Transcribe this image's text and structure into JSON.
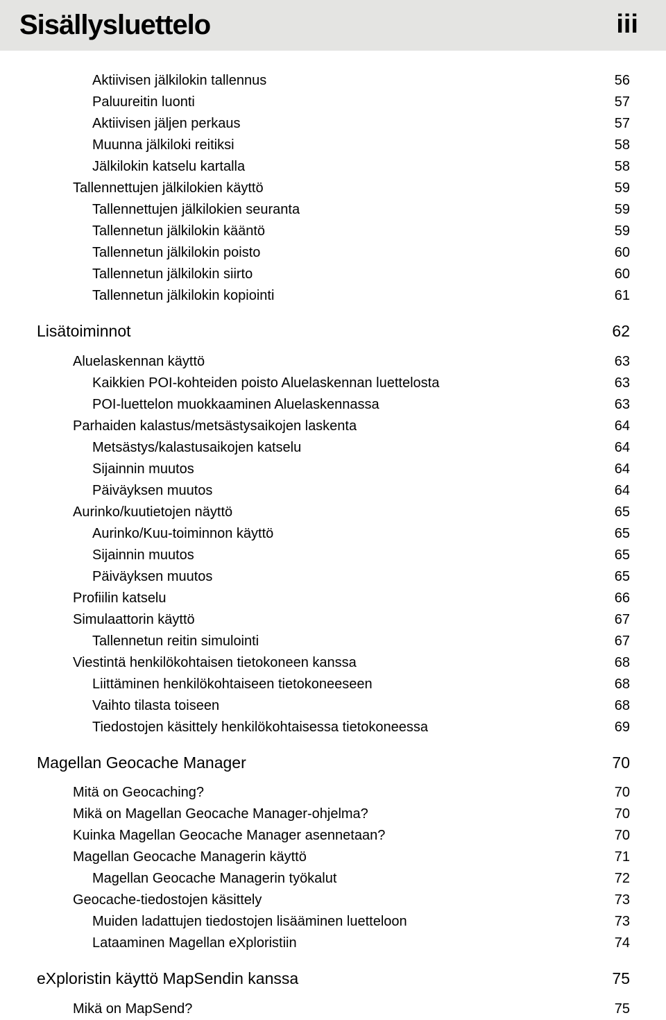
{
  "header": {
    "title": "Sisällysluettelo",
    "page_number": "iii"
  },
  "toc": [
    {
      "level": 2,
      "label": "Aktiivisen jälkilokin tallennus",
      "page": "56"
    },
    {
      "level": 2,
      "label": "Paluureitin luonti",
      "page": "57"
    },
    {
      "level": 2,
      "label": "Aktiivisen jäljen perkaus",
      "page": "57"
    },
    {
      "level": 2,
      "label": "Muunna jälkiloki reitiksi",
      "page": "58"
    },
    {
      "level": 2,
      "label": "Jälkilokin katselu kartalla",
      "page": "58"
    },
    {
      "level": 1,
      "label": "Tallennettujen jälkilokien käyttö",
      "page": "59"
    },
    {
      "level": 2,
      "label": "Tallennettujen jälkilokien seuranta",
      "page": "59"
    },
    {
      "level": 2,
      "label": "Tallennetun jälkilokin kääntö",
      "page": "59"
    },
    {
      "level": 2,
      "label": "Tallennetun jälkilokin poisto",
      "page": "60"
    },
    {
      "level": 2,
      "label": "Tallennetun jälkilokin siirto",
      "page": "60"
    },
    {
      "level": 2,
      "label": "Tallennetun jälkilokin kopiointi",
      "page": "61"
    },
    {
      "level": 0,
      "label": "Lisätoiminnot",
      "page": "62"
    },
    {
      "level": 1,
      "label": "Aluelaskennan käyttö",
      "page": "63",
      "gap": "top"
    },
    {
      "level": 2,
      "label": "Kaikkien POI-kohteiden poisto Aluelaskennan luettelosta",
      "page": "63"
    },
    {
      "level": 2,
      "label": "POI-luettelon muokkaaminen Aluelaskennassa",
      "page": "63"
    },
    {
      "level": 1,
      "label": "Parhaiden kalastus/metsästysaikojen laskenta",
      "page": "64"
    },
    {
      "level": 2,
      "label": "Metsästys/kalastusaikojen katselu",
      "page": "64"
    },
    {
      "level": 2,
      "label": "Sijainnin muutos",
      "page": "64"
    },
    {
      "level": 2,
      "label": "Päiväyksen muutos",
      "page": "64"
    },
    {
      "level": 1,
      "label": "Aurinko/kuutietojen näyttö",
      "page": "65"
    },
    {
      "level": 2,
      "label": "Aurinko/Kuu-toiminnon käyttö",
      "page": "65"
    },
    {
      "level": 2,
      "label": "Sijainnin muutos",
      "page": "65"
    },
    {
      "level": 2,
      "label": "Päiväyksen muutos",
      "page": "65"
    },
    {
      "level": 1,
      "label": "Profiilin katselu",
      "page": "66"
    },
    {
      "level": 1,
      "label": "Simulaattorin käyttö",
      "page": "67"
    },
    {
      "level": 2,
      "label": "Tallennetun reitin simulointi",
      "page": "67"
    },
    {
      "level": 1,
      "label": "Viestintä henkilökohtaisen tietokoneen kanssa",
      "page": "68"
    },
    {
      "level": 2,
      "label": "Liittäminen henkilökohtaiseen tietokoneeseen",
      "page": "68"
    },
    {
      "level": 2,
      "label": "Vaihto tilasta toiseen",
      "page": "68"
    },
    {
      "level": 2,
      "label": "Tiedostojen käsittely henkilökohtaisessa tietokoneessa",
      "page": "69"
    },
    {
      "level": 0,
      "label": "Magellan Geocache Manager",
      "page": "70"
    },
    {
      "level": 1,
      "label": "Mitä on Geocaching?",
      "page": "70",
      "gap": "top"
    },
    {
      "level": 1,
      "label": "Mikä on Magellan Geocache Manager-ohjelma?",
      "page": "70"
    },
    {
      "level": 1,
      "label": "Kuinka Magellan Geocache Manager asennetaan?",
      "page": "70"
    },
    {
      "level": 1,
      "label": "Magellan Geocache Managerin käyttö",
      "page": "71"
    },
    {
      "level": 2,
      "label": "Magellan Geocache Managerin työkalut",
      "page": "72"
    },
    {
      "level": 1,
      "label": "Geocache-tiedostojen käsittely",
      "page": "73"
    },
    {
      "level": 2,
      "label": "Muiden ladattujen tiedostojen lisääminen luetteloon",
      "page": "73"
    },
    {
      "level": 2,
      "label": "Lataaminen Magellan eXploristiin",
      "page": "74"
    },
    {
      "level": 0,
      "label": "eXploristin käyttö MapSendin kanssa",
      "page": "75"
    },
    {
      "level": 1,
      "label": "Mikä on MapSend?",
      "page": "75",
      "gap": "top"
    }
  ]
}
